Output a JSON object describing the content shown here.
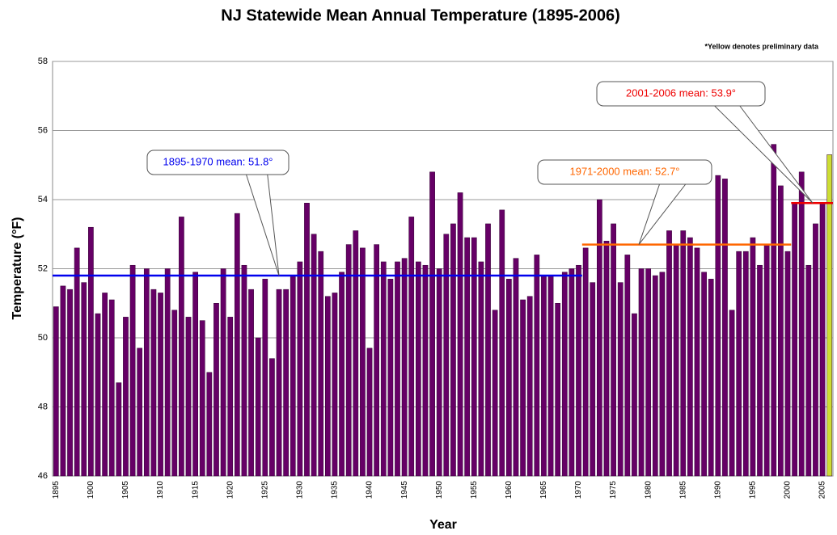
{
  "chart_data": {
    "type": "bar",
    "title": "NJ Statewide Mean Annual Temperature (1895-2006)",
    "note": "*Yellow denotes preliminary data",
    "x_label": "Year",
    "y_label": "Temperature (°F)",
    "categories": [
      "1895",
      null,
      null,
      null,
      null,
      "1900",
      null,
      null,
      null,
      null,
      "1905",
      null,
      null,
      null,
      null,
      "1910",
      null,
      null,
      null,
      null,
      "1915",
      null,
      null,
      null,
      null,
      "1920",
      null,
      null,
      null,
      null,
      "1925",
      null,
      null,
      null,
      null,
      "1930",
      null,
      null,
      null,
      null,
      "1935",
      null,
      null,
      null,
      null,
      "1940",
      null,
      null,
      null,
      null,
      "1945",
      null,
      null,
      null,
      null,
      "1950",
      null,
      null,
      null,
      null,
      "1955",
      null,
      null,
      null,
      null,
      "1960",
      null,
      null,
      null,
      null,
      "1965",
      null,
      null,
      null,
      null,
      "1970",
      null,
      null,
      null,
      null,
      "1975",
      null,
      null,
      null,
      null,
      "1980",
      null,
      null,
      null,
      null,
      "1985",
      null,
      null,
      null,
      null,
      "1990",
      null,
      null,
      null,
      null,
      "1995",
      null,
      null,
      null,
      null,
      "2000",
      null,
      null,
      null,
      null,
      "2005",
      null
    ],
    "values": [
      50.9,
      51.5,
      51.4,
      52.6,
      51.6,
      53.2,
      50.7,
      51.3,
      51.1,
      48.7,
      50.6,
      52.1,
      49.7,
      52.0,
      51.4,
      51.3,
      52.0,
      50.8,
      53.5,
      50.6,
      51.9,
      50.5,
      49.0,
      51.0,
      52.0,
      50.6,
      53.6,
      52.1,
      51.4,
      50.0,
      51.7,
      49.4,
      51.4,
      51.4,
      51.8,
      52.2,
      53.9,
      53.0,
      52.5,
      51.2,
      51.3,
      51.9,
      52.7,
      53.1,
      52.6,
      49.7,
      52.7,
      52.2,
      51.7,
      52.2,
      52.3,
      53.5,
      52.2,
      52.1,
      54.8,
      52.0,
      53.0,
      53.3,
      54.2,
      52.9,
      52.9,
      52.2,
      53.3,
      50.8,
      53.7,
      51.7,
      52.3,
      51.1,
      51.2,
      52.4,
      51.8,
      51.8,
      51.0,
      51.9,
      52.0,
      52.1,
      52.6,
      51.6,
      54.0,
      52.8,
      53.3,
      51.6,
      52.4,
      50.7,
      52.0,
      52.0,
      51.8,
      51.9,
      53.1,
      52.7,
      53.1,
      52.9,
      52.6,
      51.9,
      51.7,
      54.7,
      54.6,
      50.8,
      52.5,
      52.5,
      52.9,
      52.1,
      52.7,
      55.6,
      54.4,
      52.5,
      53.9,
      54.8,
      52.1,
      53.3,
      53.9,
      55.3
    ],
    "colors": [
      "#660066",
      "#660066",
      "#660066",
      "#660066",
      "#660066",
      "#660066",
      "#660066",
      "#660066",
      "#660066",
      "#660066",
      "#660066",
      "#660066",
      "#660066",
      "#660066",
      "#660066",
      "#660066",
      "#660066",
      "#660066",
      "#660066",
      "#660066",
      "#660066",
      "#660066",
      "#660066",
      "#660066",
      "#660066",
      "#660066",
      "#660066",
      "#660066",
      "#660066",
      "#660066",
      "#660066",
      "#660066",
      "#660066",
      "#660066",
      "#660066",
      "#660066",
      "#660066",
      "#660066",
      "#660066",
      "#660066",
      "#660066",
      "#660066",
      "#660066",
      "#660066",
      "#660066",
      "#660066",
      "#660066",
      "#660066",
      "#660066",
      "#660066",
      "#660066",
      "#660066",
      "#660066",
      "#660066",
      "#660066",
      "#660066",
      "#660066",
      "#660066",
      "#660066",
      "#660066",
      "#660066",
      "#660066",
      "#660066",
      "#660066",
      "#660066",
      "#660066",
      "#660066",
      "#660066",
      "#660066",
      "#660066",
      "#660066",
      "#660066",
      "#660066",
      "#660066",
      "#660066",
      "#660066",
      "#660066",
      "#660066",
      "#660066",
      "#660066",
      "#660066",
      "#660066",
      "#660066",
      "#660066",
      "#660066",
      "#660066",
      "#660066",
      "#660066",
      "#660066",
      "#660066",
      "#660066",
      "#660066",
      "#660066",
      "#660066",
      "#660066",
      "#660066",
      "#660066",
      "#660066",
      "#660066",
      "#660066",
      "#660066",
      "#660066",
      "#660066",
      "#660066",
      "#660066",
      "#660066",
      "#660066",
      "#660066",
      "#660066",
      "#660066",
      "#660066",
      "#ccdd33"
    ],
    "ylim": [
      46,
      58
    ],
    "yticks": [
      46,
      48,
      50,
      52,
      54,
      56,
      58
    ],
    "grid": true,
    "mean_lines": [
      {
        "label": "1895-1970 mean: 51.8°",
        "value": 51.8,
        "start": 1895,
        "end": 1970,
        "color": "#0000ee"
      },
      {
        "label": "1971-2000 mean: 52.7°",
        "value": 52.7,
        "start": 1971,
        "end": 2000,
        "color": "#ff6600"
      },
      {
        "label": "2001-2006 mean: 53.9°",
        "value": 53.9,
        "start": 2001,
        "end": 2006,
        "color": "#ee0000"
      }
    ]
  }
}
